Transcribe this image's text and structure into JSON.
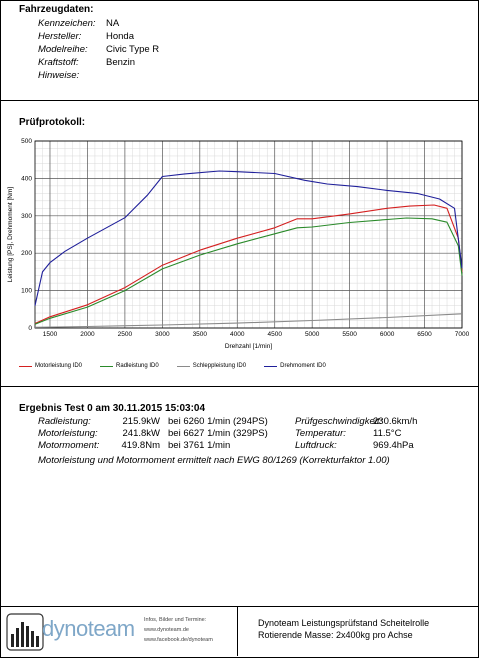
{
  "vehicle": {
    "title": "Fahrzeugdaten:",
    "fields": [
      {
        "label": "Kennzeichen:",
        "value": "NA"
      },
      {
        "label": "Hersteller:",
        "value": "Honda"
      },
      {
        "label": "Modelreihe:",
        "value": "Civic Type R"
      },
      {
        "label": "Kraftstoff:",
        "value": "Benzin"
      },
      {
        "label": "Hinweise:",
        "value": ""
      }
    ]
  },
  "protocol_title": "Prüfprotokoll:",
  "chart_data": {
    "type": "line",
    "xlabel": "Drehzahl [1/min]",
    "ylabel": "Leistung [PS], Drehmoment [Nm]",
    "xlim": [
      1300,
      7000
    ],
    "ylim": [
      0,
      500
    ],
    "x_ticks": [
      1500,
      2000,
      2500,
      3000,
      3500,
      4000,
      4500,
      5000,
      5500,
      6000,
      6500,
      7000
    ],
    "y_ticks": [
      0,
      100,
      200,
      300,
      400,
      500
    ],
    "grid": true,
    "legend_position": "bottom",
    "series": [
      {
        "name": "Motorleistung ID0",
        "color": "#d42020",
        "x": [
          1300,
          1500,
          2000,
          2500,
          3000,
          3500,
          4000,
          4500,
          4800,
          5000,
          5500,
          6000,
          6300,
          6627,
          6800,
          6950,
          7000
        ],
        "y": [
          12,
          30,
          62,
          108,
          168,
          208,
          240,
          268,
          292,
          292,
          305,
          320,
          326,
          329,
          320,
          240,
          150
        ]
      },
      {
        "name": "Radleistung ID0",
        "color": "#2a8a2a",
        "x": [
          1300,
          1500,
          2000,
          2500,
          3000,
          3500,
          4000,
          4500,
          4800,
          5000,
          5500,
          6000,
          6260,
          6600,
          6800,
          6950,
          7000
        ],
        "y": [
          10,
          26,
          56,
          100,
          158,
          195,
          225,
          252,
          268,
          270,
          282,
          290,
          294,
          292,
          283,
          220,
          140
        ]
      },
      {
        "name": "Schleppleistung ID0",
        "color": "#8a8a8a",
        "x": [
          1300,
          2000,
          3000,
          4000,
          5000,
          6000,
          7000
        ],
        "y": [
          2,
          4,
          8,
          13,
          20,
          28,
          38
        ]
      },
      {
        "name": "Drehmoment ID0",
        "color": "#1f1f9a",
        "x": [
          1300,
          1400,
          1500,
          1700,
          2000,
          2500,
          2800,
          3000,
          3300,
          3761,
          4000,
          4500,
          4900,
          5200,
          5600,
          6000,
          6400,
          6700,
          6900,
          7000
        ],
        "y": [
          60,
          150,
          175,
          205,
          240,
          295,
          355,
          405,
          412,
          419.8,
          418,
          413,
          395,
          385,
          378,
          368,
          360,
          345,
          320,
          160
        ]
      }
    ]
  },
  "results": {
    "title": "Ergebnis Test 0 am 30.11.2015 15:03:04",
    "left": [
      {
        "label": "Radleistung:",
        "value": "215.9kW",
        "detail": "bei 6260 1/min (294PS)"
      },
      {
        "label": "Motorleistung:",
        "value": "241.8kW",
        "detail": "bei 6627 1/min (329PS)"
      },
      {
        "label": "Motormoment:",
        "value": "419.8Nm",
        "detail": "bei 3761 1/min"
      }
    ],
    "right": [
      {
        "label": "Prüfgeschwindigkeit:",
        "value": "230.6km/h"
      },
      {
        "label": "Temperatur:",
        "value": "11.5°C"
      },
      {
        "label": "Luftdruck:",
        "value": "969.4hPa"
      }
    ],
    "note": "Motorleistung und Motormoment ermittelt nach EWG 80/1269 (Korrekturfaktor 1.00)"
  },
  "footer": {
    "brand": "dynoteam",
    "contact": [
      "Infos, Bilder und Termine:",
      "www.dynoteam.de",
      "www.facebook.de/dynoteam"
    ],
    "rig": [
      "Dynoteam Leistungsprüfstand Scheitelrolle",
      "Rotierende Masse: 2x400kg pro Achse"
    ]
  }
}
